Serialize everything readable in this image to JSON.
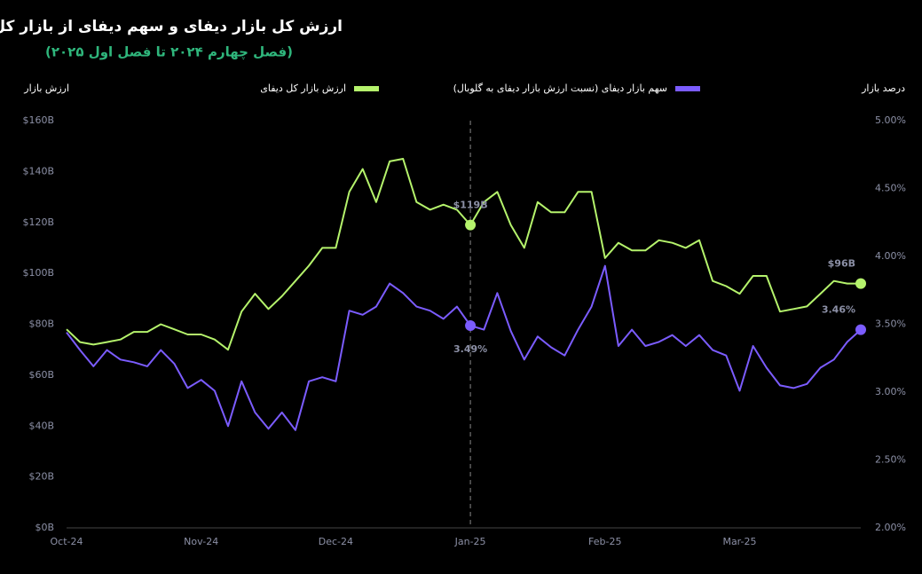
{
  "chart_data": {
    "type": "line",
    "title": "ارزش کل بازار دیفای و سهم دیفای از بازار کل",
    "subtitle": "(فصل چهارم ۲۰۲۴ تا فصل اول ۲۰۲۵)",
    "y_label": "ارزش بازار",
    "y2_label": "درصد بازار",
    "categories": [
      "Oct-24",
      null,
      null,
      null,
      null,
      null,
      null,
      null,
      null,
      null,
      "Nov-24",
      null,
      null,
      null,
      null,
      null,
      null,
      null,
      null,
      null,
      "Dec-24",
      null,
      null,
      null,
      null,
      null,
      null,
      null,
      null,
      null,
      "Jan-25",
      null,
      null,
      null,
      null,
      null,
      null,
      null,
      null,
      null,
      "Feb-25",
      null,
      null,
      null,
      null,
      null,
      null,
      null,
      null,
      null,
      "Mar-25",
      null,
      null,
      null,
      null,
      null,
      null,
      null,
      null,
      null
    ],
    "series": [
      {
        "name": "ارزش بازار کل دیفای",
        "color": "#b5f36c",
        "axis": "y",
        "values": [
          78,
          73,
          72,
          73,
          74,
          77,
          77,
          80,
          78,
          76,
          76,
          74,
          70,
          85,
          92,
          86,
          91,
          97,
          103,
          110,
          110,
          132,
          141,
          128,
          144,
          145,
          128,
          125,
          127,
          125,
          119,
          128,
          132,
          119,
          110,
          128,
          124,
          124,
          132,
          132,
          106,
          112,
          109,
          109,
          113,
          112,
          110,
          113,
          97,
          95,
          92,
          99,
          99,
          85,
          86,
          87,
          92,
          97,
          96,
          96
        ],
        "value_labels": [
          null,
          null,
          null,
          null,
          null,
          null,
          null,
          null,
          null,
          null,
          null,
          null,
          null,
          null,
          null,
          null,
          null,
          null,
          null,
          null,
          null,
          null,
          null,
          null,
          null,
          null,
          null,
          null,
          null,
          null,
          "$119B",
          null,
          null,
          null,
          null,
          null,
          null,
          null,
          null,
          null,
          null,
          null,
          null,
          null,
          null,
          null,
          null,
          null,
          null,
          null,
          null,
          null,
          null,
          null,
          null,
          null,
          null,
          null,
          null,
          "$96B"
        ]
      },
      {
        "name": "سهم بازار دیفای (نسبت ارزش بازار دیفای به گلوبال)",
        "color": "#7b5cff",
        "axis": "y2",
        "values": [
          3.44,
          3.31,
          3.19,
          3.31,
          3.24,
          3.22,
          3.19,
          3.31,
          3.21,
          3.03,
          3.09,
          3.01,
          2.75,
          3.08,
          2.85,
          2.73,
          2.85,
          2.72,
          3.08,
          3.11,
          3.08,
          3.6,
          3.57,
          3.63,
          3.8,
          3.73,
          3.63,
          3.6,
          3.54,
          3.63,
          3.49,
          3.46,
          3.73,
          3.45,
          3.24,
          3.41,
          3.33,
          3.27,
          3.46,
          3.63,
          3.93,
          3.34,
          3.46,
          3.34,
          3.37,
          3.42,
          3.34,
          3.42,
          3.31,
          3.27,
          3.01,
          3.34,
          3.18,
          3.05,
          3.03,
          3.06,
          3.18,
          3.24,
          3.37,
          3.46
        ],
        "value_labels": [
          null,
          null,
          null,
          null,
          null,
          null,
          null,
          null,
          null,
          null,
          null,
          null,
          null,
          null,
          null,
          null,
          null,
          null,
          null,
          null,
          null,
          null,
          null,
          null,
          null,
          null,
          null,
          null,
          null,
          null,
          "3.49%",
          null,
          null,
          null,
          null,
          null,
          null,
          null,
          null,
          null,
          null,
          null,
          null,
          null,
          null,
          null,
          null,
          null,
          null,
          null,
          null,
          null,
          null,
          null,
          null,
          null,
          null,
          null,
          null,
          "3.46%"
        ]
      }
    ],
    "ylim": [
      0,
      160
    ],
    "yticks": [
      {
        "value": 0,
        "label": "$0B"
      },
      {
        "value": 20,
        "label": "$20B"
      },
      {
        "value": 40,
        "label": "$40B"
      },
      {
        "value": 60,
        "label": "$60B"
      },
      {
        "value": 80,
        "label": "$80B"
      },
      {
        "value": 100,
        "label": "$100B"
      },
      {
        "value": 120,
        "label": "$120B"
      },
      {
        "value": 140,
        "label": "$140B"
      },
      {
        "value": 160,
        "label": "$160B"
      }
    ],
    "y2lim": [
      2,
      5
    ],
    "y2ticks": [
      {
        "value": 2,
        "label": "2.00%"
      },
      {
        "value": 2.5,
        "label": "2.50%"
      },
      {
        "value": 3,
        "label": "3.00%"
      },
      {
        "value": 3.5,
        "label": "3.50%"
      },
      {
        "value": 4,
        "label": "4.00%"
      },
      {
        "value": 4.5,
        "label": "4.50%"
      },
      {
        "value": 5,
        "label": "5.00%"
      }
    ],
    "grid": false
  }
}
